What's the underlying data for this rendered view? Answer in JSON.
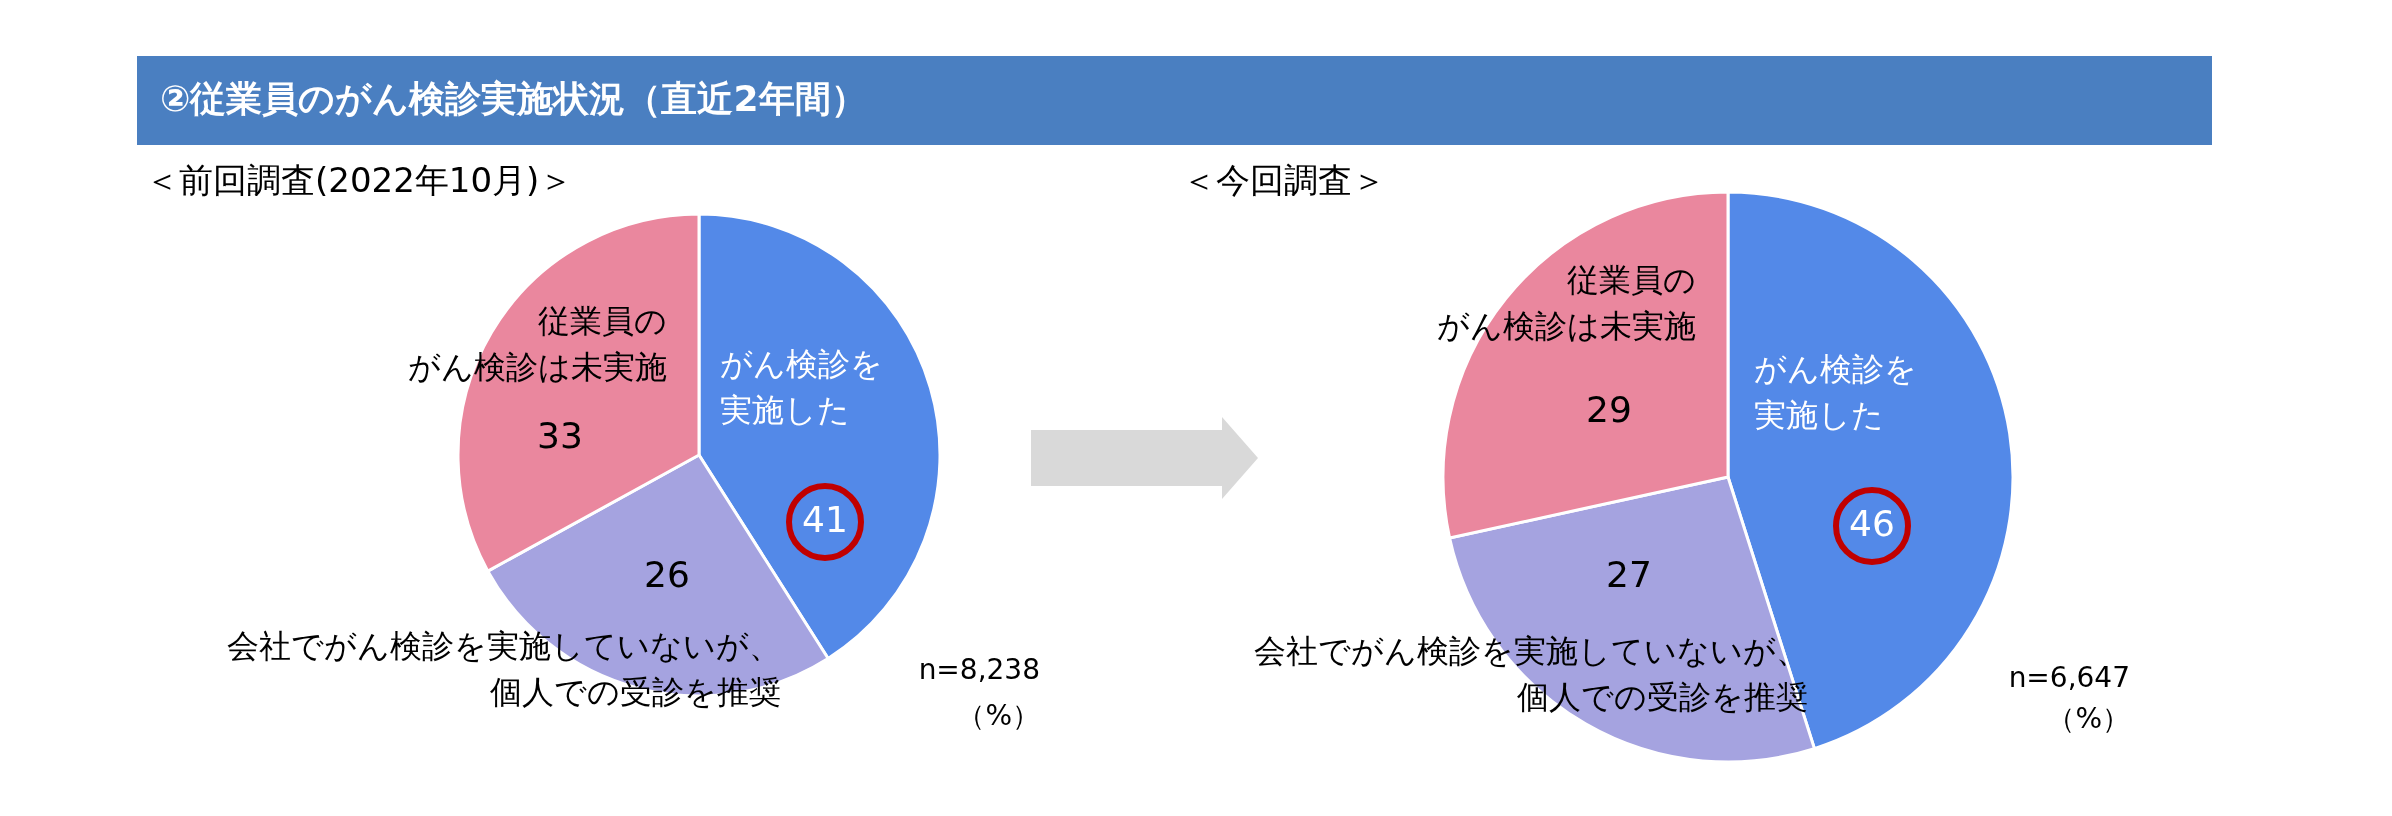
{
  "chart_data": [
    {
      "type": "pie",
      "title": "②従業員のがん検診実施状況（直近2年間）",
      "subtitle": "＜前回調査(2022年10月)＞",
      "categories": [
        "がん検診を実施した",
        "会社でがん検診を実施していないが、個人での受診を推奨",
        "従業員のがん検診は未実施"
      ],
      "values": [
        41,
        26,
        33
      ],
      "colors": [
        "#5389e8",
        "#a5a3e0",
        "#ea879e"
      ],
      "data_labels": true,
      "annotations": [
        "n=8,238",
        "（%）"
      ]
    },
    {
      "type": "pie",
      "subtitle": "＜今回調査＞",
      "categories": [
        "がん検診を実施した",
        "会社でがん検診を実施していないが、個人での受診を推奨",
        "従業員のがん検診は未実施"
      ],
      "values": [
        46,
        27,
        29
      ],
      "colors": [
        "#5389e8",
        "#a5a3e0",
        "#ea879e"
      ],
      "data_labels": true,
      "annotations": [
        "n=6,647",
        "（%）"
      ]
    }
  ]
}
